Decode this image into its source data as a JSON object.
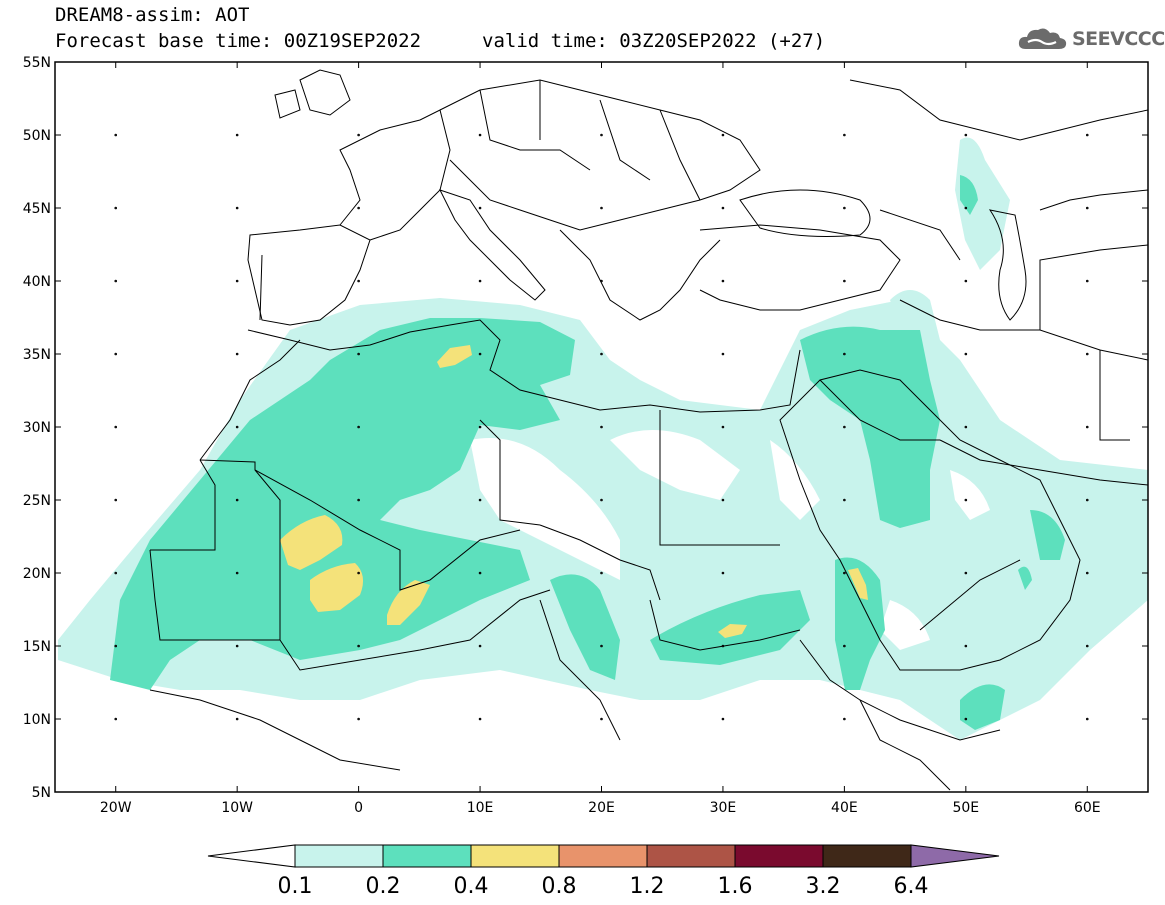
{
  "header": {
    "title_line1": "DREAM8-assim: AOT",
    "title_line2": "Forecast base time: 00Z19SEP2022",
    "valid_label": "valid time: 03Z20SEP2022 (+27)",
    "logo_text": "SEEVCCC",
    "logo_icon": "cloud-icon"
  },
  "map": {
    "lat_labels": [
      "55N",
      "50N",
      "45N",
      "40N",
      "35N",
      "30N",
      "25N",
      "20N",
      "15N",
      "10N",
      "5N"
    ],
    "lon_labels": [
      "20W",
      "10W",
      "0",
      "10E",
      "20E",
      "30E",
      "40E",
      "50E",
      "60E"
    ],
    "lon_range": [
      -25,
      65
    ],
    "lat_range": [
      5,
      55
    ]
  },
  "legend": {
    "levels": [
      "0.1",
      "0.2",
      "0.4",
      "0.8",
      "1.2",
      "1.6",
      "3.2",
      "6.4"
    ],
    "colors": [
      "#ffffff",
      "#c8f3ec",
      "#5de0bd",
      "#f4e27a",
      "#e8936b",
      "#ad5446",
      "#7a0a2e",
      "#3f2818",
      "#8e6aa8"
    ]
  },
  "colors": {
    "aot_01": "#c8f3ec",
    "aot_02": "#5de0bd",
    "aot_04": "#f4e27a"
  }
}
